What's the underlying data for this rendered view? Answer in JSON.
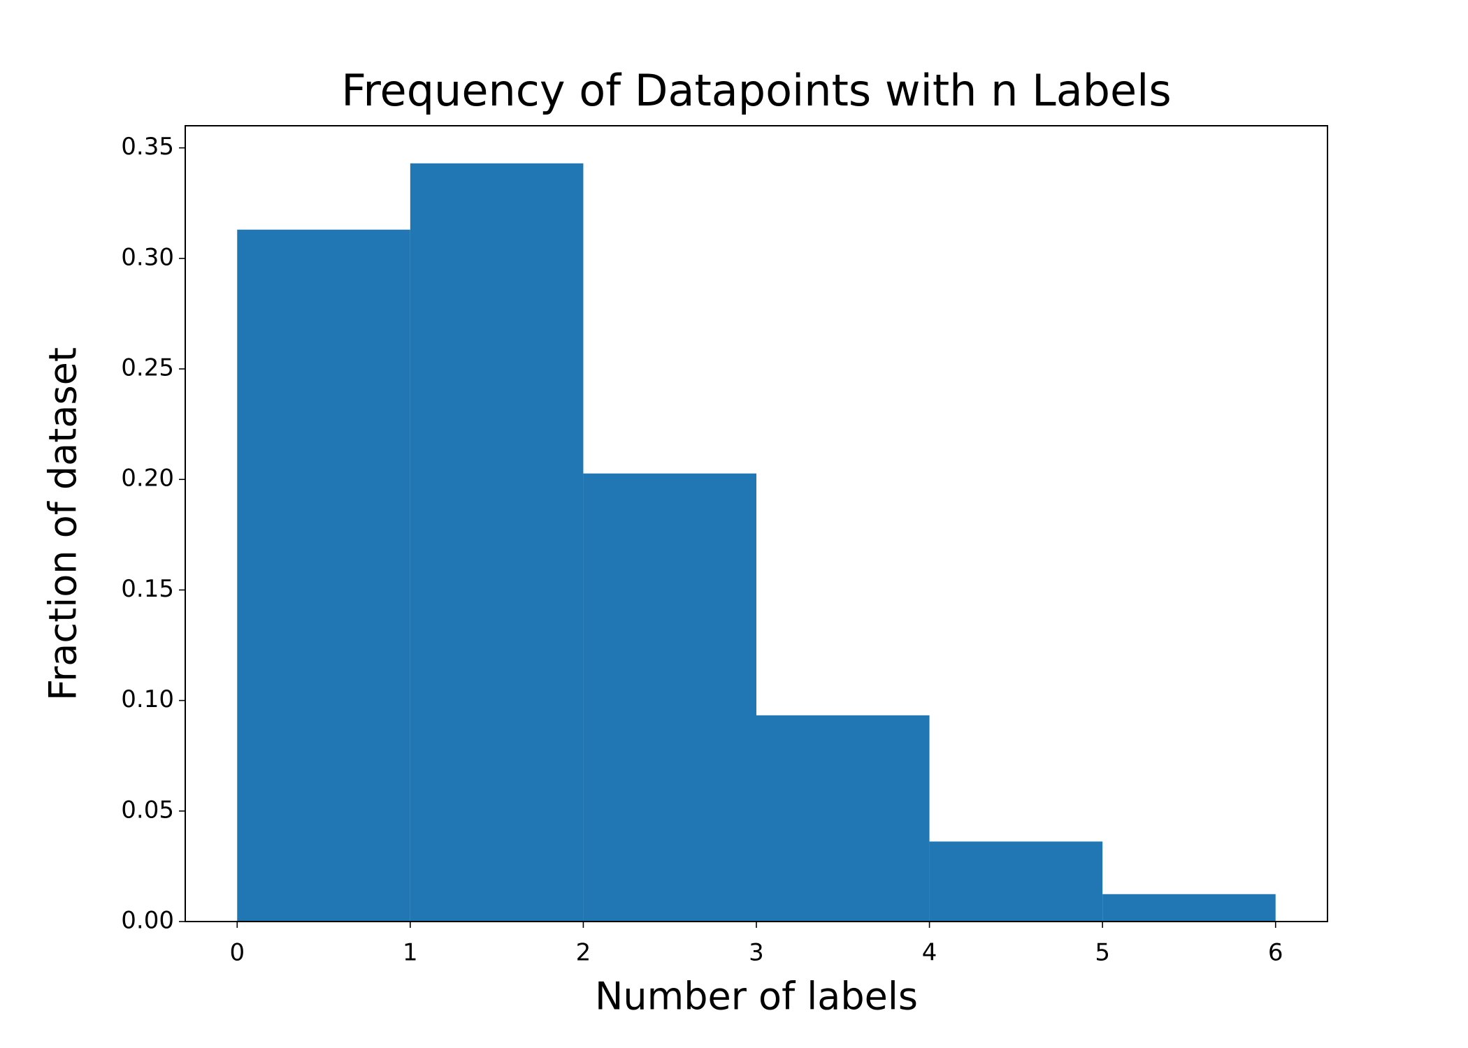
{
  "chart_data": {
    "type": "histogram",
    "title": "Frequency of Datapoints with n Labels",
    "x_label": "Number of labels",
    "y_label": "Fraction of dataset",
    "bins": [
      0,
      1,
      2,
      3,
      4,
      5,
      6
    ],
    "values": [
      0.313,
      0.343,
      0.2027,
      0.0933,
      0.0362,
      0.0124
    ],
    "color": "#2077b4",
    "xlim": [
      -0.3,
      6.3
    ],
    "xticks": [
      0,
      1,
      2,
      3,
      4,
      5,
      6
    ],
    "ylim": [
      0,
      0.36
    ],
    "yticks": [
      {
        "value": 0,
        "label": "0.00"
      },
      0.05,
      {
        "value": 0.1,
        "label": "0.10"
      },
      0.15,
      {
        "value": 0.2,
        "label": "0.20"
      },
      0.25,
      {
        "value": 0.3,
        "label": "0.30"
      },
      0.35
    ],
    "grid": false
  }
}
